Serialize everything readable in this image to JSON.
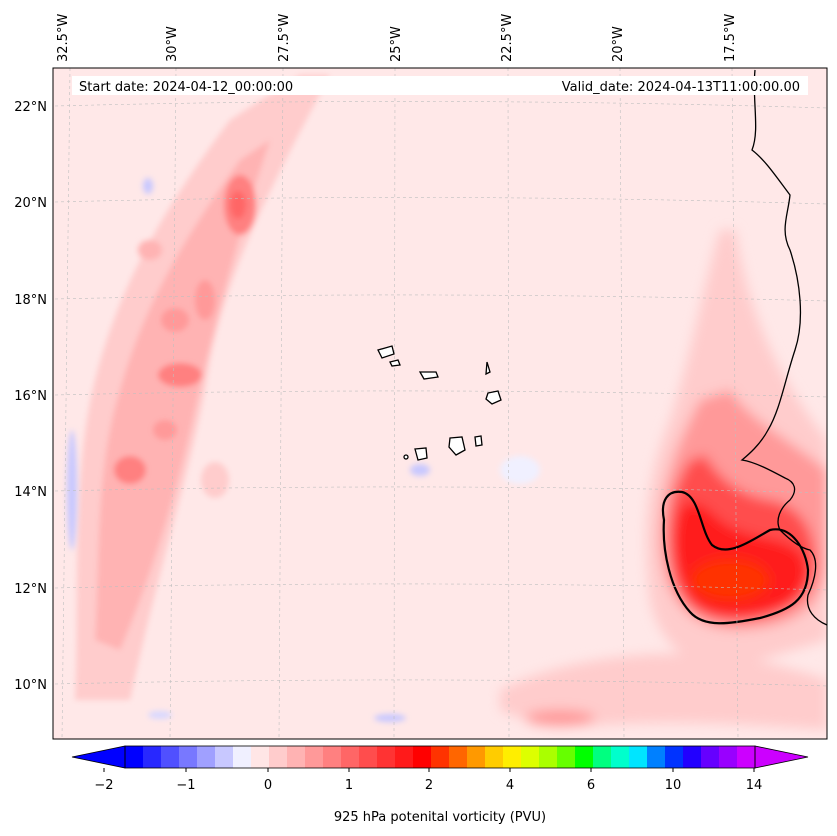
{
  "map": {
    "start_date": "Start date: 2024-04-12_00:00:00",
    "valid_date": "Valid_date: 2024-04-13T11:00:00.00",
    "lon_labels": [
      "32.5°W",
      "30°W",
      "27.5°W",
      "25°W",
      "22.5°W",
      "20°W",
      "17.5°W"
    ],
    "lat_labels": [
      "22°N",
      "20°N",
      "18°N",
      "16°N",
      "14°N",
      "12°N",
      "10°N"
    ],
    "colorbar": {
      "title": "925 hPa potenital vorticity (PVU)",
      "tick_labels": [
        "−2",
        "−1",
        "0",
        "1",
        "2",
        "4",
        "6",
        "10",
        "14"
      ],
      "colors": [
        "#0000ff",
        "#2828ff",
        "#5050ff",
        "#7878ff",
        "#a0a0ff",
        "#c8c8ff",
        "#f0f0ff",
        "#ffe6e6",
        "#ffcccc",
        "#ffb3b3",
        "#ff9999",
        "#ff8080",
        "#ff6666",
        "#ff4d4d",
        "#ff3333",
        "#ff1a1a",
        "#ff0000",
        "#ff3300",
        "#ff6600",
        "#ff9900",
        "#ffcc00",
        "#ffee00",
        "#ddff00",
        "#aaff00",
        "#66ff00",
        "#00ff00",
        "#00ff80",
        "#00ffcc",
        "#00e5ff",
        "#0080ff",
        "#0033ff",
        "#2200ff",
        "#6600ff",
        "#9900ff",
        "#cc00ff"
      ],
      "under_color": "#0000ff",
      "over_color": "#cc00ff"
    }
  }
}
